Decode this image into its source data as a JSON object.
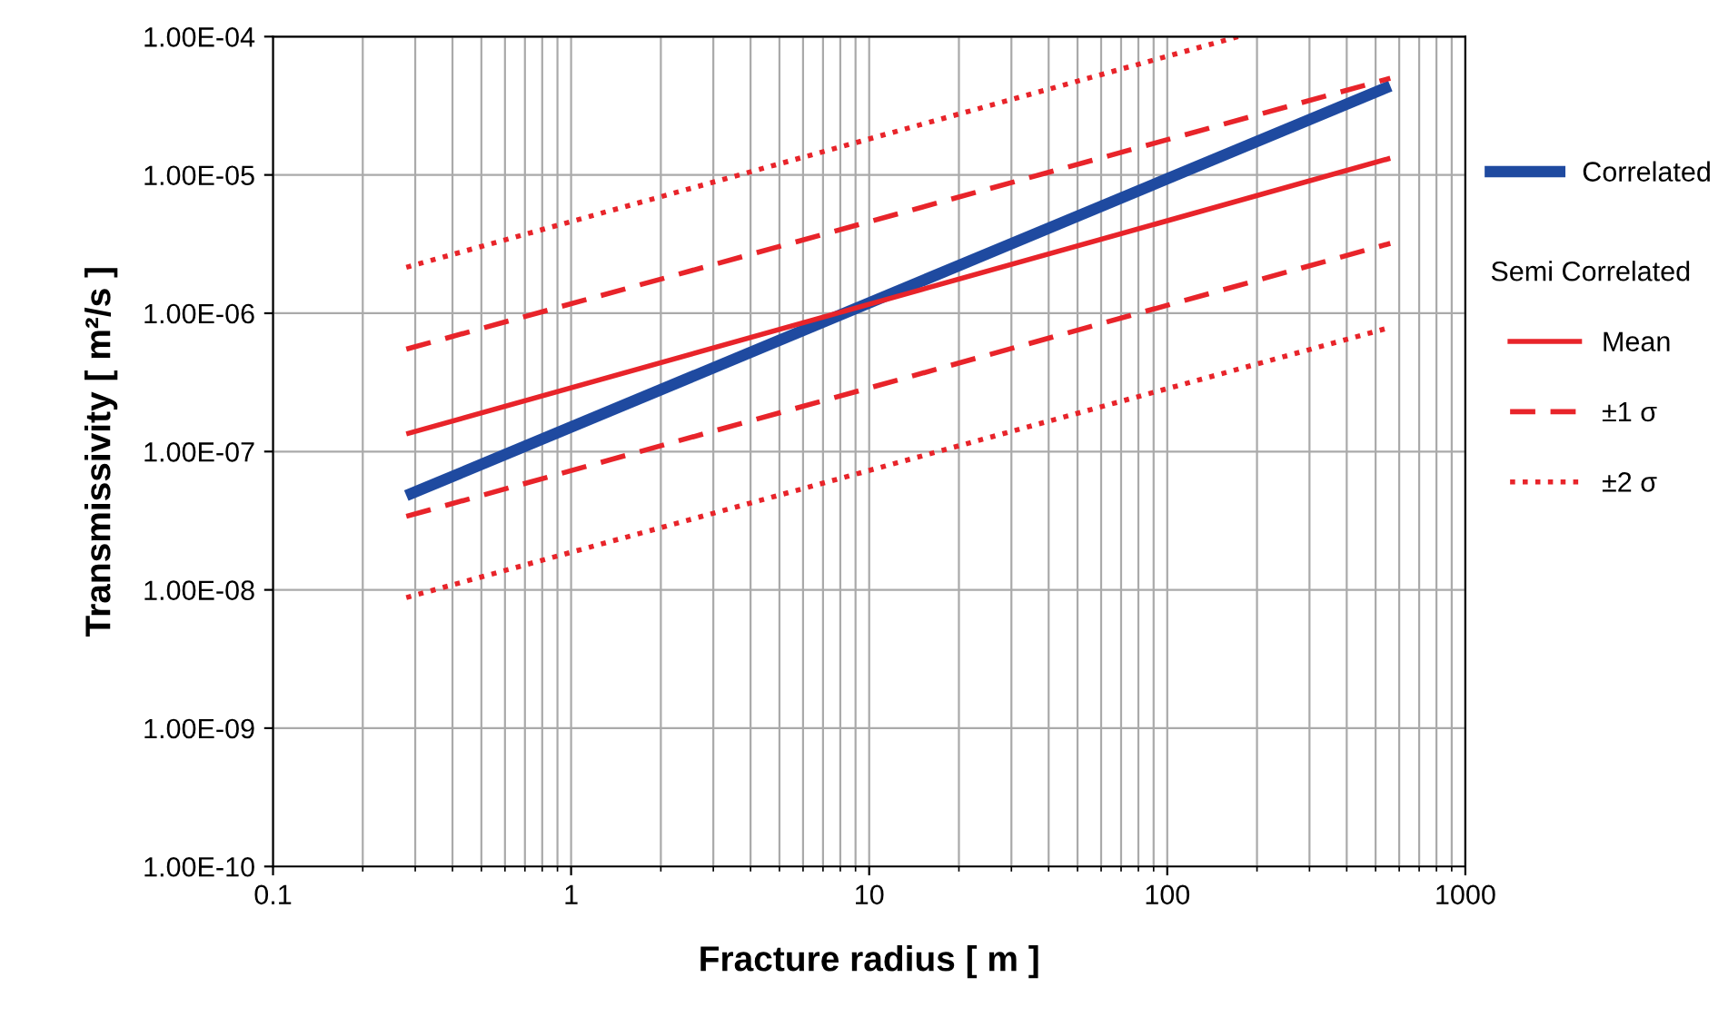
{
  "chart_data": {
    "type": "line",
    "xlabel": "Fracture radius [ m ]",
    "ylabel": "Transmissivity [ m²/s ]",
    "log": "xy",
    "grid": true,
    "legend": "right",
    "legend_title": "Semi Correlated",
    "xlim": [
      0.1,
      1000
    ],
    "xticks": [
      0.1,
      1,
      10,
      100,
      1000
    ],
    "ylim": [
      1e-10,
      0.0001
    ],
    "yticks": [
      {
        "value": 1e-10,
        "label": "1.00E-10"
      },
      {
        "value": 1e-09,
        "label": "1.00E-09"
      },
      {
        "value": 1e-08,
        "label": "1.00E-08"
      },
      {
        "value": 1e-07,
        "label": "1.00E-07"
      },
      {
        "value": 1e-06,
        "label": "1.00E-06"
      },
      {
        "value": 1e-05,
        "label": "1.00E-05"
      },
      {
        "value": 0.0001,
        "label": "1.00E-04"
      }
    ],
    "series": [
      {
        "name": "Correlated",
        "color": "#1f4aa0",
        "x": [
          0.28,
          560
        ],
        "values": [
          4.8e-08,
          4.4e-05
        ],
        "line_style": "solid"
      },
      {
        "name": "Mean",
        "color": "#e8242a",
        "x": [
          0.28,
          560
        ],
        "values": [
          1.34e-07,
          1.32e-05
        ],
        "line_style": "solid"
      },
      {
        "name": "±1 σ",
        "color": "#e8242a",
        "x": [
          0.28,
          560
        ],
        "values": [
          5.5e-07,
          5e-05
        ],
        "line_style": "dashed"
      },
      {
        "color": "#e8242a",
        "x": [
          0.28,
          560
        ],
        "values": [
          3.4e-08,
          3.2e-06
        ],
        "line_style": "dashed"
      },
      {
        "name": "±2 σ",
        "color": "#e8242a",
        "x": [
          0.28,
          173
        ],
        "values": [
          2.15e-06,
          0.0001
        ],
        "line_style": "dotted"
      },
      {
        "color": "#e8242a",
        "x": [
          0.28,
          560
        ],
        "values": [
          8.8e-09,
          7.9e-07
        ],
        "line_style": "dotted"
      }
    ]
  }
}
